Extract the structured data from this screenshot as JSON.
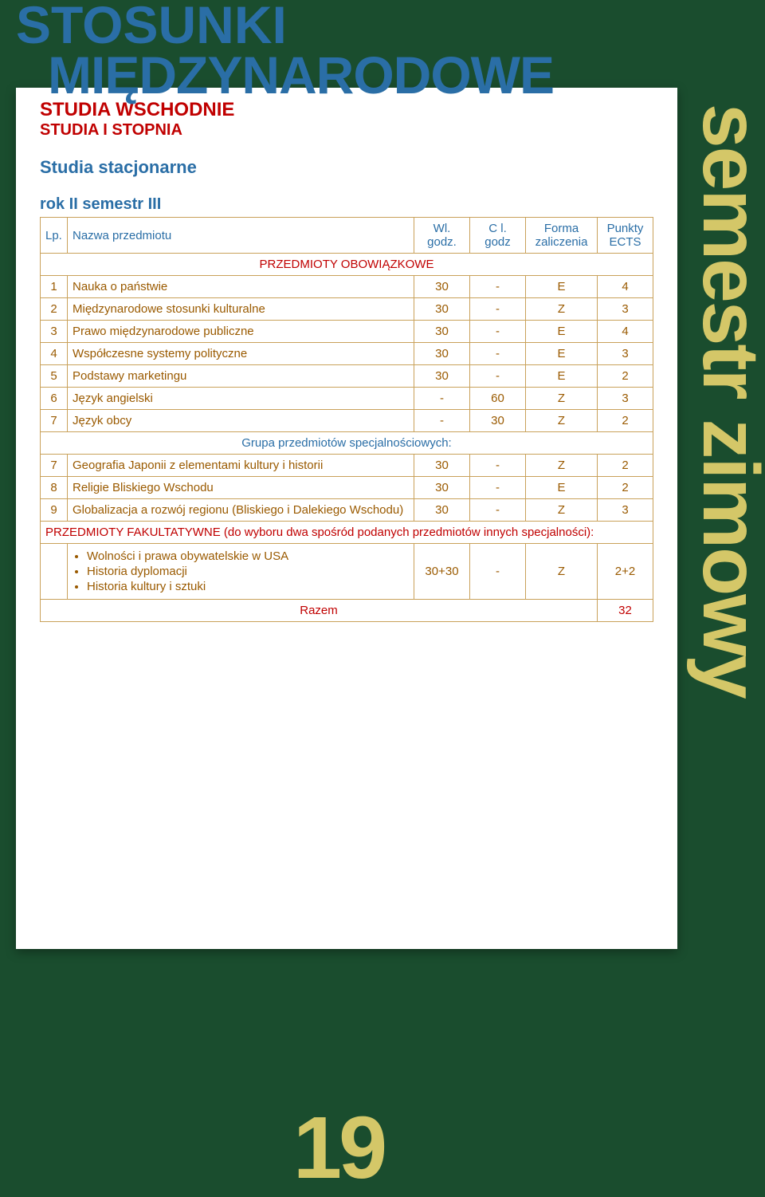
{
  "page": {
    "background_color": "#1a4d2e",
    "card_color": "#ffffff",
    "accent_blue": "#2a6ea6",
    "accent_red": "#c00000",
    "accent_orange": "#9a5a00",
    "border_color": "#c9a15a",
    "sidebar_color": "#d4c768",
    "pagenum_color": "#d4c768"
  },
  "title": {
    "line1": "STOSUNKI",
    "line2": "MIĘDZYNARODOWE"
  },
  "headings": {
    "program": "STUDIA WSCHODNIE",
    "degree": "STUDIA I STOPNIA",
    "mode": "Studia stacjonarne",
    "year": "rok II semestr III"
  },
  "sidebar_text": "semestr zimowy",
  "page_number": "19",
  "table": {
    "columns": {
      "lp": "Lp.",
      "name": "Nazwa przedmiotu",
      "wl": "Wl. godz.",
      "c": "C l. godz",
      "forma": "Forma zaliczenia",
      "punkty": "Punkty ECTS"
    },
    "section1": "PRZEDMIOTY OBOWIĄZKOWE",
    "rows1": [
      {
        "lp": "1",
        "name": "Nauka o państwie",
        "wl": "30",
        "c": "-",
        "f": "E",
        "p": "4"
      },
      {
        "lp": "2",
        "name": "Międzynarodowe stosunki kulturalne",
        "wl": "30",
        "c": "-",
        "f": "Z",
        "p": "3"
      },
      {
        "lp": "3",
        "name": "Prawo międzynarodowe publiczne",
        "wl": "30",
        "c": "-",
        "f": "E",
        "p": "4"
      },
      {
        "lp": "4",
        "name": "Współczesne systemy polityczne",
        "wl": "30",
        "c": "-",
        "f": "E",
        "p": "3"
      },
      {
        "lp": "5",
        "name": "Podstawy marketingu",
        "wl": "30",
        "c": "-",
        "f": "E",
        "p": "2"
      },
      {
        "lp": "6",
        "name": "Język angielski",
        "wl": "-",
        "c": "60",
        "f": "Z",
        "p": "3"
      },
      {
        "lp": "7",
        "name": "Język obcy",
        "wl": "-",
        "c": "30",
        "f": "Z",
        "p": "2"
      }
    ],
    "section2": "Grupa przedmiotów specjalnościowych:",
    "rows2": [
      {
        "lp": "7",
        "name": "Geografia Japonii z elementami kultury i historii",
        "wl": "30",
        "c": "-",
        "f": "Z",
        "p": "2"
      },
      {
        "lp": "8",
        "name": "Religie Bliskiego Wschodu",
        "wl": "30",
        "c": "-",
        "f": "E",
        "p": "2"
      },
      {
        "lp": "9",
        "name": "Globalizacja a rozwój regionu (Bliskiego i Dalekiego Wschodu)",
        "wl": "30",
        "c": "-",
        "f": "Z",
        "p": "3"
      }
    ],
    "fakultatywne": {
      "header": "PRZEDMIOTY FAKULTATYWNE  (do wyboru dwa spośród podanych przedmiotów innych specjalności):",
      "bullets": [
        "Wolności i prawa obywatelskie  w USA",
        "Historia dyplomacji",
        "Historia kultury i sztuki"
      ],
      "wl": "30+30",
      "c": "-",
      "f": "Z",
      "p": "2+2"
    },
    "razem": {
      "label": "Razem",
      "value": "32"
    }
  }
}
